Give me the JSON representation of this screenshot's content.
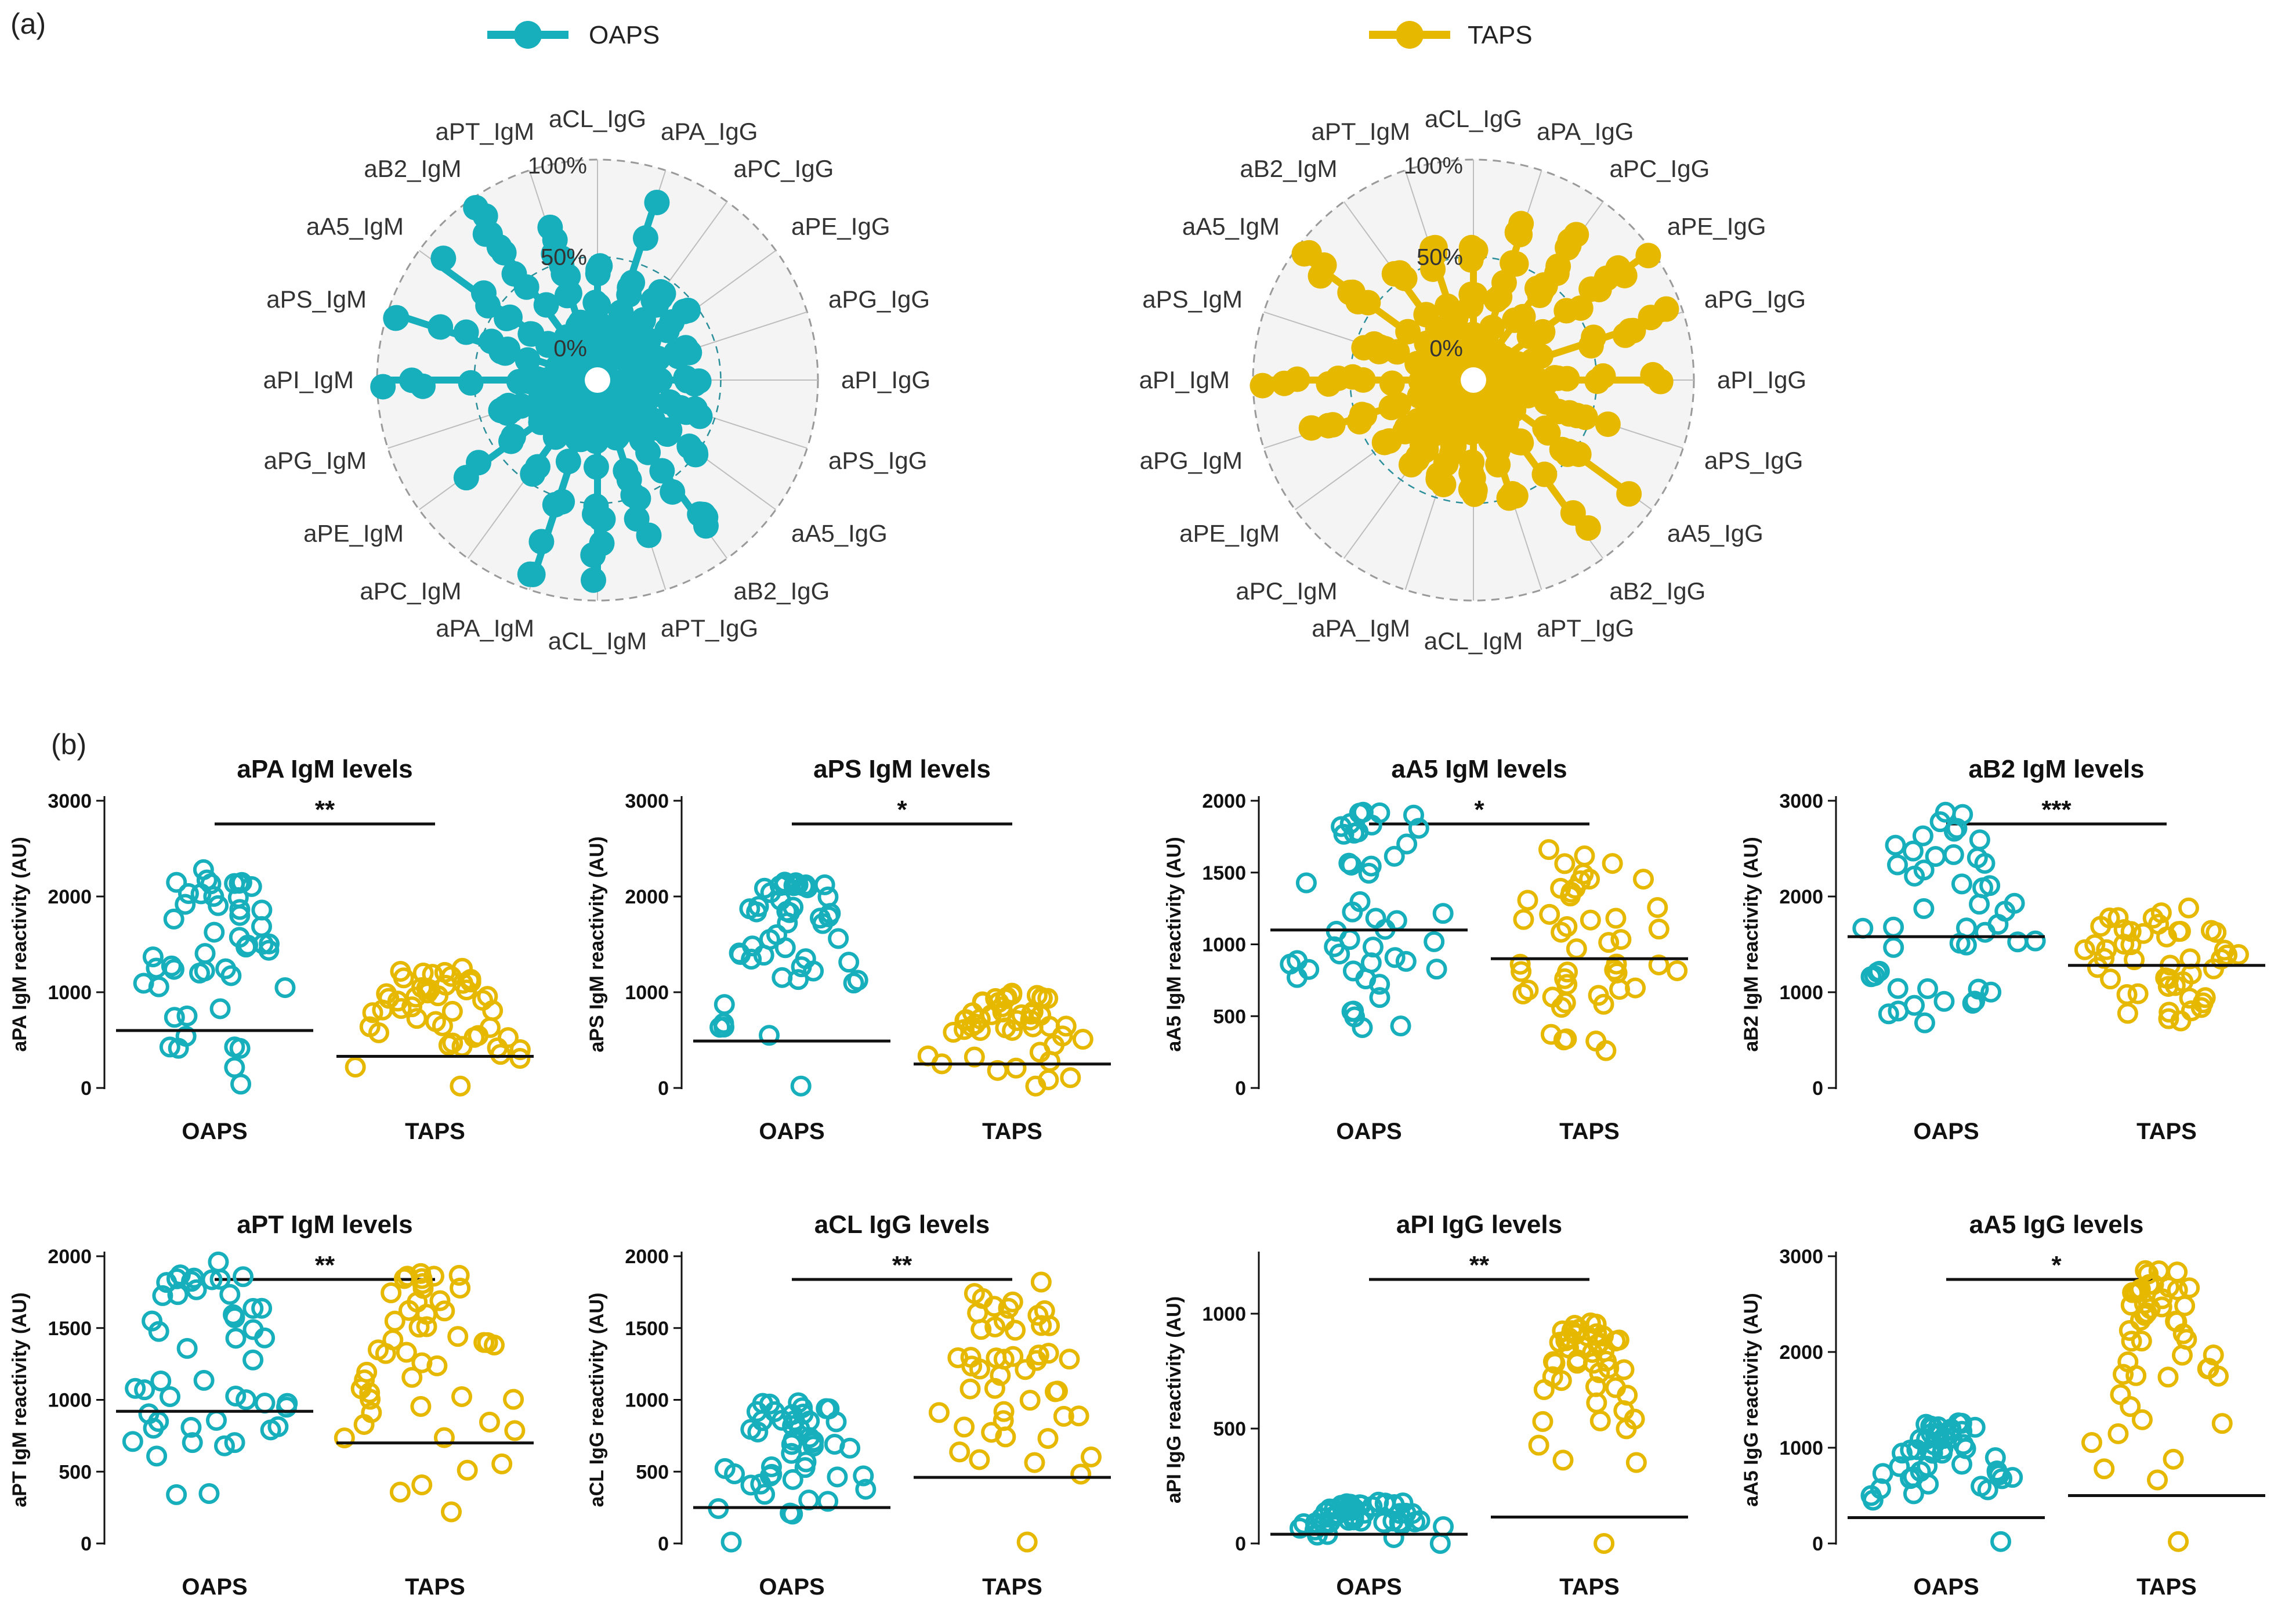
{
  "figure": {
    "panel_a_label": "(a)",
    "panel_b_label": "(b)"
  },
  "colors": {
    "OAPS": "#17AFBC",
    "TAPS": "#E6B800",
    "grid": "#bdbdbd",
    "disc_fill": "#f4f4f4"
  },
  "chart_data": [
    {
      "type": "radar",
      "name": "OAPS",
      "legend_label": "OAPS",
      "ring_labels": [
        "0%",
        "50%",
        "100%"
      ],
      "axes": [
        "aCL_IgG",
        "aPA_IgG",
        "aPC_IgG",
        "aPE_IgG",
        "aPG_IgG",
        "aPI_IgG",
        "aPS_IgG",
        "aA5_IgG",
        "aB2_IgG",
        "aPT_IgG",
        "aCL_IgM",
        "aPA_IgM",
        "aPC_IgM",
        "aPE_IgM",
        "aPG_IgM",
        "aPI_IgM",
        "aPS_IgM",
        "aA5_IgM",
        "aB2_IgM",
        "aPT_IgM"
      ],
      "max_values": [
        0.45,
        0.85,
        0.42,
        0.45,
        0.35,
        0.38,
        0.42,
        0.5,
        0.82,
        0.72,
        0.92,
        0.95,
        0.45,
        0.72,
        0.38,
        1.0,
        0.98,
        0.9,
        0.98,
        0.7
      ]
    },
    {
      "type": "radar",
      "name": "TAPS",
      "legend_label": "TAPS",
      "ring_labels": [
        "0%",
        "50%",
        "100%"
      ],
      "axes": [
        "aCL_IgG",
        "aPA_IgG",
        "aPC_IgG",
        "aPE_IgG",
        "aPG_IgG",
        "aPI_IgG",
        "aPS_IgG",
        "aA5_IgG",
        "aB2_IgG",
        "aPT_IgG",
        "aCL_IgM",
        "aPA_IgM",
        "aPC_IgM",
        "aPE_IgM",
        "aPG_IgM",
        "aPI_IgM",
        "aPS_IgM",
        "aA5_IgM",
        "aB2_IgM",
        "aPT_IgM"
      ],
      "max_values": [
        0.55,
        0.72,
        0.8,
        1.0,
        0.95,
        0.85,
        0.6,
        0.88,
        0.85,
        0.5,
        0.45,
        0.42,
        0.4,
        0.42,
        0.75,
        0.98,
        0.45,
        0.98,
        0.55,
        0.58
      ]
    },
    {
      "type": "scatter",
      "title": "aPA IgM levels",
      "ylabel": "aPA IgM reactivity (AU)",
      "categories": [
        "OAPS",
        "TAPS"
      ],
      "yticks": [
        0,
        1000,
        2000,
        3000
      ],
      "ylim": [
        0,
        3000
      ],
      "significance": "**",
      "means": [
        600,
        330
      ],
      "spread": [
        [
          40,
          2280
        ],
        [
          20,
          1250
        ]
      ]
    },
    {
      "type": "scatter",
      "title": "aPS IgM levels",
      "ylabel": "aPS IgM reactivity (AU)",
      "categories": [
        "OAPS",
        "TAPS"
      ],
      "yticks": [
        0,
        1000,
        2000,
        3000
      ],
      "ylim": [
        0,
        3000
      ],
      "significance": "*",
      "means": [
        490,
        250
      ],
      "spread": [
        [
          20,
          2150
        ],
        [
          20,
          990
        ]
      ]
    },
    {
      "type": "scatter",
      "title": "aA5 IgM levels",
      "ylabel": "aA5 IgM reactivity (AU)",
      "categories": [
        "OAPS",
        "TAPS"
      ],
      "yticks": [
        0,
        500,
        1000,
        1500,
        2000
      ],
      "ylim": [
        0,
        2000
      ],
      "significance": "*",
      "means": [
        1100,
        900
      ],
      "spread": [
        [
          420,
          1920
        ],
        [
          260,
          1660
        ]
      ]
    },
    {
      "type": "scatter",
      "title": "aB2 IgM levels",
      "ylabel": "aB2 IgM reactivity (AU)",
      "categories": [
        "OAPS",
        "TAPS"
      ],
      "yticks": [
        0,
        1000,
        2000,
        3000
      ],
      "ylim": [
        0,
        3000
      ],
      "significance": "***",
      "means": [
        1580,
        1280
      ],
      "spread": [
        [
          680,
          2880
        ],
        [
          700,
          1880
        ]
      ]
    },
    {
      "type": "scatter",
      "title": "aPT IgM levels",
      "ylabel": "aPT IgM reactivity (AU)",
      "categories": [
        "OAPS",
        "TAPS"
      ],
      "yticks": [
        0,
        500,
        1000,
        1500,
        2000
      ],
      "ylim": [
        0,
        2000
      ],
      "significance": "**",
      "means": [
        920,
        700
      ],
      "spread": [
        [
          340,
          1960
        ],
        [
          220,
          1880
        ]
      ]
    },
    {
      "type": "scatter",
      "title": "aCL IgG levels",
      "ylabel": "aCL IgG reactivity (AU)",
      "categories": [
        "OAPS",
        "TAPS"
      ],
      "yticks": [
        0,
        500,
        1000,
        1500,
        2000
      ],
      "ylim": [
        0,
        2000
      ],
      "significance": "**",
      "means": [
        250,
        460
      ],
      "spread": [
        [
          10,
          980
        ],
        [
          10,
          1820
        ]
      ]
    },
    {
      "type": "scatter",
      "title": "aPI IgG levels",
      "ylabel": "aPI IgG reactivity (AU)",
      "categories": [
        "OAPS",
        "TAPS"
      ],
      "yticks": [
        0,
        500,
        1000
      ],
      "ylim": [
        0,
        1250
      ],
      "significance": "**",
      "means": [
        40,
        115
      ],
      "spread": [
        [
          0,
          180
        ],
        [
          0,
          960
        ]
      ]
    },
    {
      "type": "scatter",
      "title": "aA5 IgG levels",
      "ylabel": "aA5 IgG reactivity (AU)",
      "categories": [
        "OAPS",
        "TAPS"
      ],
      "yticks": [
        0,
        1000,
        2000,
        3000
      ],
      "ylim": [
        0,
        3000
      ],
      "significance": "*",
      "means": [
        270,
        500
      ],
      "spread": [
        [
          20,
          1260
        ],
        [
          20,
          2850
        ]
      ]
    }
  ]
}
